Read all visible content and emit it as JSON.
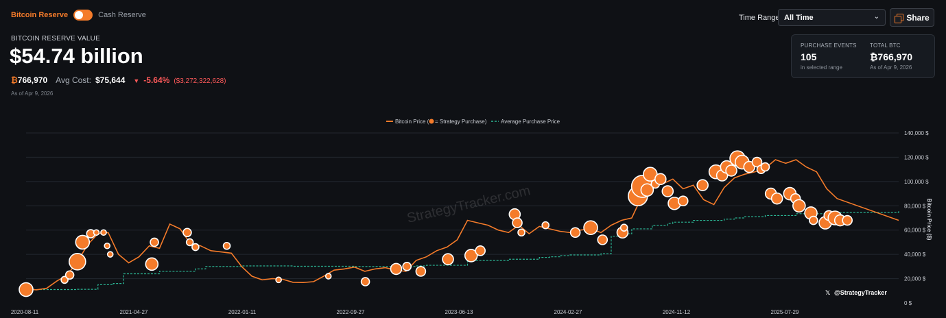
{
  "toggle": {
    "on_label": "Bitcoin Reserve",
    "off_label": "Cash Reserve"
  },
  "summary": {
    "reserve_label": "BITCOIN RESERVE VALUE",
    "reserve_value": "$54.74 billion",
    "btc_symbol": "₿",
    "btc_amount": "766,970",
    "avg_cost_label": "Avg Cost:",
    "avg_cost": "$75,644",
    "change_pct": "-5.64%",
    "change_abs": "($3,272,322,628)",
    "as_of": "As of Apr 9, 2026"
  },
  "controls": {
    "time_range_label": "Time Range:",
    "time_range_value": "All Time",
    "share_label": "Share"
  },
  "info_card": {
    "purchase_events_title": "PURCHASE EVENTS",
    "purchase_events_value": "105",
    "purchase_events_sub": "in selected range",
    "total_btc_title": "TOTAL BTC",
    "total_btc_value": "₿766,970",
    "total_btc_sub": "As of Apr 9, 2026"
  },
  "colors": {
    "accent": "#f47b2a",
    "avg_line": "#2bb594",
    "negative": "#ff5a5a",
    "background": "#0f1115"
  },
  "chart_data": {
    "type": "line",
    "legend": {
      "price": "Bitcoin Price (",
      "marker_note": " = Strategy Purchase)",
      "average": "Average Purchase Price",
      "placement": "top-center"
    },
    "watermark": "StrategyTracker.com",
    "handle": "@StrategyTracker",
    "ylabel": "Bitcoin Price ($)",
    "ylim": [
      0,
      140000
    ],
    "yticks": [
      "140,000 $",
      "120,000 $",
      "100,000 $",
      "80,000 $",
      "60,000 $",
      "40,000 $",
      "20,000 $",
      "0 $"
    ],
    "ytick_values": [
      140000,
      120000,
      100000,
      80000,
      60000,
      40000,
      20000,
      0
    ],
    "xticks": [
      "2020-08-11",
      "2021-04-27",
      "2022-01-11",
      "2022-09-27",
      "2023-06-13",
      "2024-02-27",
      "2024-11-12",
      "2025-07-29"
    ],
    "grid": true,
    "series": [
      {
        "name": "Bitcoin Price",
        "x": [
          0,
          20,
          40,
          60,
          80,
          100,
          120,
          140,
          160,
          180,
          200,
          220,
          240,
          260,
          280,
          300,
          320,
          340,
          360,
          380,
          400,
          420,
          440,
          460,
          480,
          500,
          520,
          540,
          560,
          580,
          600,
          620,
          640,
          660,
          680,
          700,
          720,
          740,
          760,
          780,
          800,
          820,
          840,
          860,
          880,
          900,
          920,
          940,
          960,
          980,
          1000,
          1020,
          1040,
          1060,
          1080,
          1100,
          1120,
          1140,
          1160,
          1180,
          1200,
          1220,
          1240,
          1260,
          1280,
          1300,
          1320,
          1340,
          1360,
          1380,
          1400,
          1420,
          1440,
          1460,
          1480,
          1500,
          1520,
          1540,
          1560,
          1580,
          1700
        ],
        "y": [
          11500,
          10800,
          12000,
          18000,
          23000,
          34000,
          48000,
          57000,
          58000,
          40000,
          33000,
          38000,
          47000,
          45000,
          65000,
          61000,
          49000,
          47000,
          43000,
          42000,
          41000,
          30000,
          22000,
          19000,
          20000,
          19500,
          17000,
          16800,
          17500,
          22000,
          27000,
          28000,
          29500,
          26000,
          28000,
          29000,
          27000,
          26000,
          35000,
          38000,
          43000,
          46000,
          52000,
          68000,
          66000,
          64000,
          60000,
          58000,
          64000,
          57000,
          63000,
          61000,
          59000,
          58000,
          60000,
          61000,
          58000,
          64000,
          68000,
          70000,
          88000,
          96000,
          98000,
          102000,
          94000,
          97000,
          85000,
          81000,
          95000,
          103000,
          106000,
          108000,
          111000,
          118000,
          115000,
          118000,
          112000,
          108000,
          94000,
          86000,
          68000
        ]
      },
      {
        "name": "Average Purchase Price",
        "x": [
          0,
          100,
          140,
          170,
          190,
          260,
          330,
          350,
          420,
          520,
          640,
          760,
          780,
          860,
          940,
          1000,
          1020,
          1040,
          1060,
          1120,
          1140,
          1160,
          1180,
          1220,
          1250,
          1260,
          1300,
          1360,
          1380,
          1400,
          1440,
          1500,
          1580,
          1700
        ],
        "y": [
          11000,
          11200,
          15000,
          16000,
          24000,
          26000,
          28000,
          30000,
          30500,
          30200,
          30000,
          30500,
          31000,
          35000,
          36000,
          37500,
          38000,
          39000,
          39500,
          40500,
          55000,
          57000,
          61000,
          64000,
          65500,
          66500,
          68000,
          69000,
          70000,
          71000,
          72000,
          73500,
          74500,
          75644
        ]
      }
    ],
    "purchases": {
      "x": [
        0,
        75,
        85,
        94,
        100,
        110,
        126,
        137,
        151,
        158,
        164,
        245,
        250,
        314,
        319,
        330,
        391,
        492,
        589,
        661,
        721,
        742,
        769,
        822,
        867,
        885,
        952,
        957,
        965,
        1012,
        1070,
        1100,
        1123,
        1162,
        1165,
        1192,
        1201,
        1210,
        1216,
        1226,
        1236,
        1250,
        1263,
        1280,
        1318,
        1344,
        1356,
        1365,
        1374,
        1386,
        1395,
        1409,
        1424,
        1432,
        1440,
        1451,
        1463,
        1488,
        1499,
        1506,
        1529,
        1534,
        1557,
        1564,
        1576,
        1586,
        1600
      ],
      "y": [
        11000,
        19000,
        23000,
        32000,
        34000,
        50000,
        57000,
        58000,
        58000,
        47000,
        40000,
        32000,
        50000,
        58000,
        50000,
        46000,
        47000,
        19000,
        22000,
        17500,
        28000,
        30000,
        26000,
        36000,
        39000,
        43000,
        73000,
        66000,
        58000,
        64000,
        58000,
        62000,
        52000,
        58000,
        62000,
        88000,
        96000,
        93000,
        106000,
        98000,
        102000,
        92000,
        82000,
        84000,
        97000,
        108000,
        105000,
        112000,
        109000,
        119000,
        116000,
        112000,
        116000,
        110000,
        112000,
        90000,
        86000,
        90000,
        86000,
        80000,
        74000,
        68000,
        66000,
        72000,
        70000,
        68000,
        68000
      ],
      "size": [
        10,
        5,
        6,
        4,
        12,
        10,
        6,
        4,
        4,
        4,
        4,
        9,
        6,
        6,
        5,
        5,
        5,
        4,
        4,
        6,
        8,
        6,
        7,
        8,
        9,
        7,
        8,
        7,
        5,
        5,
        7,
        10,
        7,
        8,
        5,
        14,
        16,
        9,
        10,
        6,
        8,
        8,
        9,
        7,
        8,
        10,
        8,
        9,
        8,
        11,
        10,
        8,
        7,
        6,
        6,
        8,
        8,
        9,
        7,
        9,
        9,
        6,
        9,
        7,
        10,
        8,
        7
      ]
    }
  }
}
